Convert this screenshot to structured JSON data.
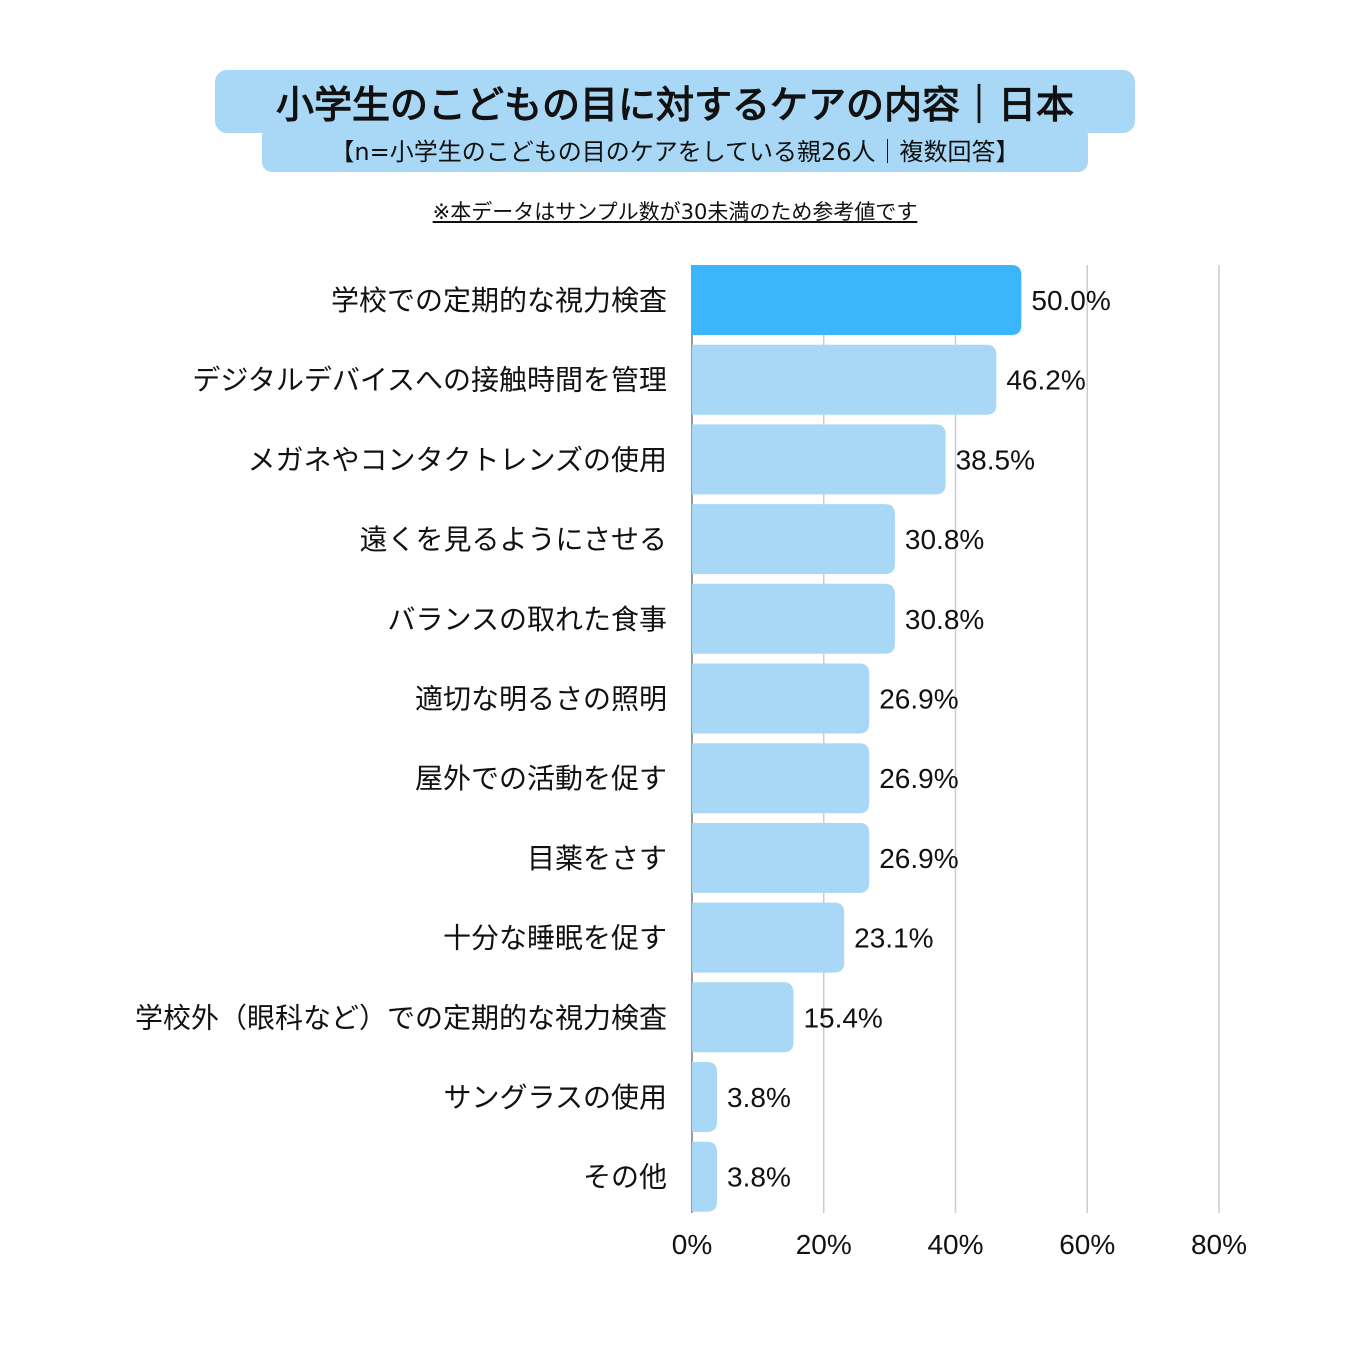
{
  "header": {
    "title": "小学生のこどもの目に対するケアの内容｜日本",
    "subtitle": "【n=小学生のこどもの目のケアをしている親26人｜複数回答】",
    "note": "※本データはサンプル数が30未満のため参考値です"
  },
  "colors": {
    "highlight_bar": "#3bb5fb",
    "bar": "#a8d8f5",
    "header_bg": "#a8d8f5",
    "grid": "#cccccc",
    "axis": "#999999"
  },
  "chart_data": {
    "type": "bar",
    "orientation": "horizontal",
    "title": "小学生のこどもの目に対するケアの内容｜日本",
    "categories": [
      "学校での定期的な視力検査",
      "デジタルデバイスへの接触時間を管理",
      "メガネやコンタクトレンズの使用",
      "遠くを見るようにさせる",
      "バランスの取れた食事",
      "適切な明るさの照明",
      "屋外での活動を促す",
      "目薬をさす",
      "十分な睡眠を促す",
      "学校外（眼科など）での定期的な視力検査",
      "サングラスの使用",
      "その他"
    ],
    "values": [
      50.0,
      46.2,
      38.5,
      30.8,
      30.8,
      26.9,
      26.9,
      26.9,
      23.1,
      15.4,
      3.8,
      3.8
    ],
    "value_labels": [
      "50.0%",
      "46.2%",
      "38.5%",
      "30.8%",
      "30.8%",
      "26.9%",
      "26.9%",
      "26.9%",
      "23.1%",
      "15.4%",
      "3.8%",
      "3.8%"
    ],
    "highlight_index": 0,
    "xlim": [
      0,
      80
    ],
    "xticks": [
      0,
      20,
      40,
      60,
      80
    ],
    "xtick_labels": [
      "0%",
      "20%",
      "40%",
      "60%",
      "80%"
    ],
    "xlabel": "",
    "ylabel": "",
    "grid": true
  }
}
